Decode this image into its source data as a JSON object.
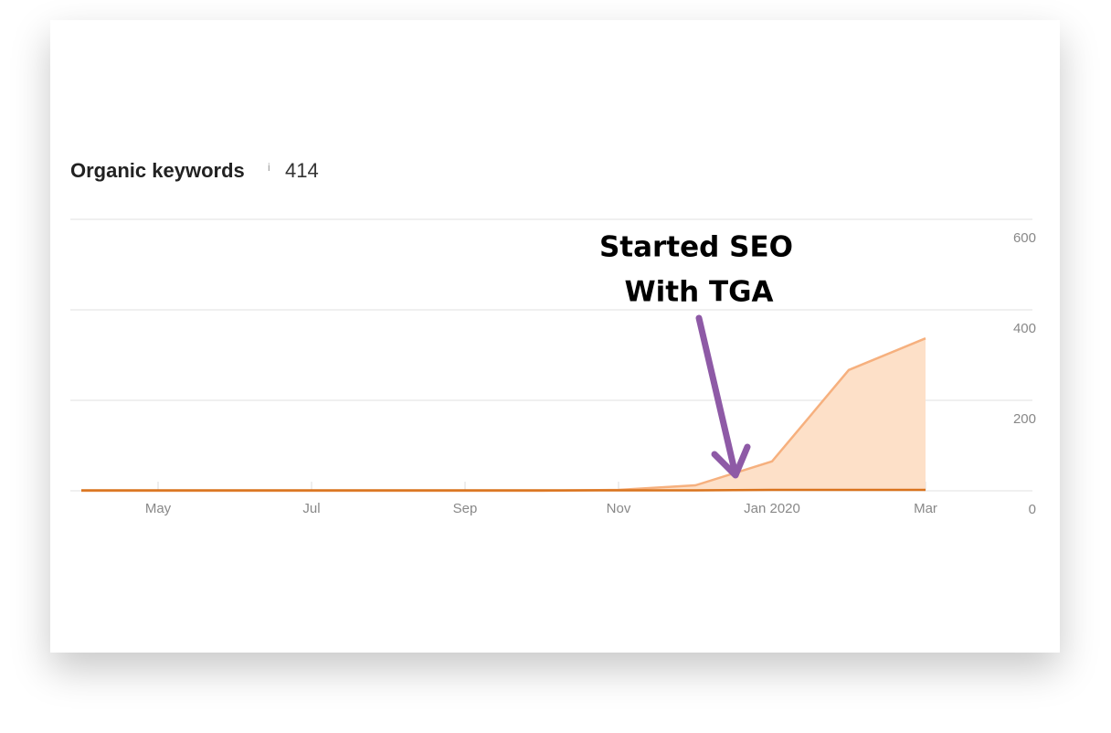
{
  "chart_data": {
    "type": "area",
    "title": "Organic keywords",
    "title_info": "i",
    "current_value": 414,
    "annotation": [
      "Started SEO",
      "With TGA"
    ],
    "x": [
      "2019-04",
      "2019-05",
      "2019-06",
      "2019-07",
      "2019-08",
      "2019-09",
      "2019-10",
      "2019-11",
      "2019-12",
      "2020-01",
      "2020-02",
      "2020-03"
    ],
    "xlim": [
      "2019-04",
      "2020-04"
    ],
    "xticks": [
      {
        "value": "2019-05",
        "label": "May"
      },
      {
        "value": "2019-07",
        "label": "Jul"
      },
      {
        "value": "2019-09",
        "label": "Sep"
      },
      {
        "value": "2019-11",
        "label": "Nov"
      },
      {
        "value": "2020-01",
        "label": "Jan 2020"
      },
      {
        "value": "2020-03",
        "label": "Mar"
      }
    ],
    "series": [
      {
        "color": "#f6b07e",
        "fill": "#fde0c8",
        "values": [
          0,
          0,
          0,
          0,
          0,
          0,
          0,
          2,
          12,
          65,
          267,
          337
        ]
      },
      {
        "color": "#d9731d",
        "values": [
          1,
          1,
          1,
          1,
          1,
          1,
          1,
          1,
          1,
          2,
          2,
          2
        ]
      }
    ],
    "ylim": [
      0,
      600
    ],
    "yticks": [
      0,
      200,
      400,
      600
    ],
    "grid": true
  }
}
